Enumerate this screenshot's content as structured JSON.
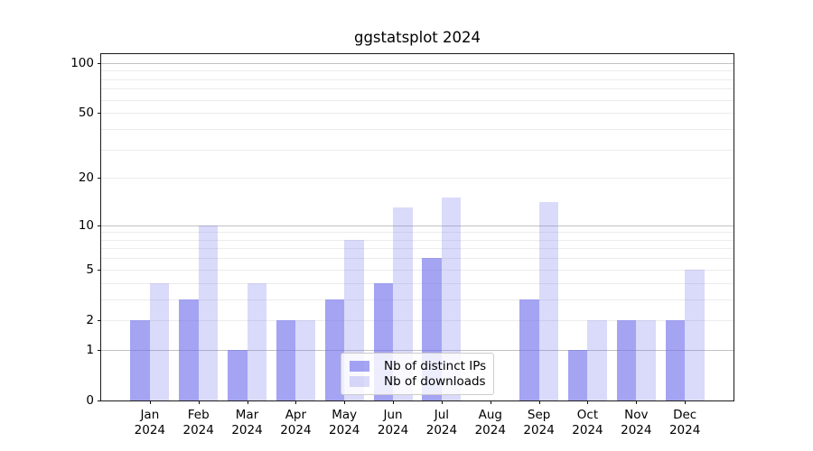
{
  "title": "ggstatsplot 2024",
  "colors": {
    "ips_bar": "rgba(108,108,236,0.62)",
    "downloads_bar": "rgba(108,108,236,0.25)",
    "grid_major": "#c2c2c2",
    "grid_minor": "#ececec",
    "spine": "#1a1a1a",
    "text": "#000000",
    "legend_border": "#cccccc",
    "legend_bg": "rgba(255,255,255,0.8)"
  },
  "legend": {
    "items": [
      {
        "label": "Nb of distinct IPs",
        "color_key": "ips_bar"
      },
      {
        "label": "Nb of downloads",
        "color_key": "downloads_bar"
      }
    ],
    "position": "lower center"
  },
  "chart_data": {
    "type": "bar",
    "title": "ggstatsplot 2024",
    "categories": [
      "Jan",
      "Feb",
      "Mar",
      "Apr",
      "May",
      "Jun",
      "Jul",
      "Aug",
      "Sep",
      "Oct",
      "Nov",
      "Dec"
    ],
    "year_label": "2024",
    "series": [
      {
        "name": "Nb of distinct IPs",
        "color_key": "ips_bar",
        "values": [
          2,
          3,
          1,
          2,
          3,
          4,
          6,
          0,
          3,
          1,
          2,
          2
        ]
      },
      {
        "name": "Nb of downloads",
        "color_key": "downloads_bar",
        "values": [
          4,
          10,
          4,
          2,
          8,
          13,
          15,
          0,
          14,
          2,
          2,
          5
        ]
      }
    ],
    "xlabel": "",
    "ylabel": "",
    "y_scale": "log1p",
    "ylim": [
      0,
      113
    ],
    "y_ticks": [
      0,
      1,
      2,
      5,
      10,
      20,
      50,
      100
    ],
    "y_major_gridlines": [
      1,
      10,
      100
    ],
    "y_minor_gridlines": [
      2,
      3,
      4,
      5,
      6,
      7,
      8,
      9,
      20,
      30,
      40,
      50,
      60,
      70,
      80,
      90
    ],
    "grid": true,
    "legend_position": "lower center"
  }
}
